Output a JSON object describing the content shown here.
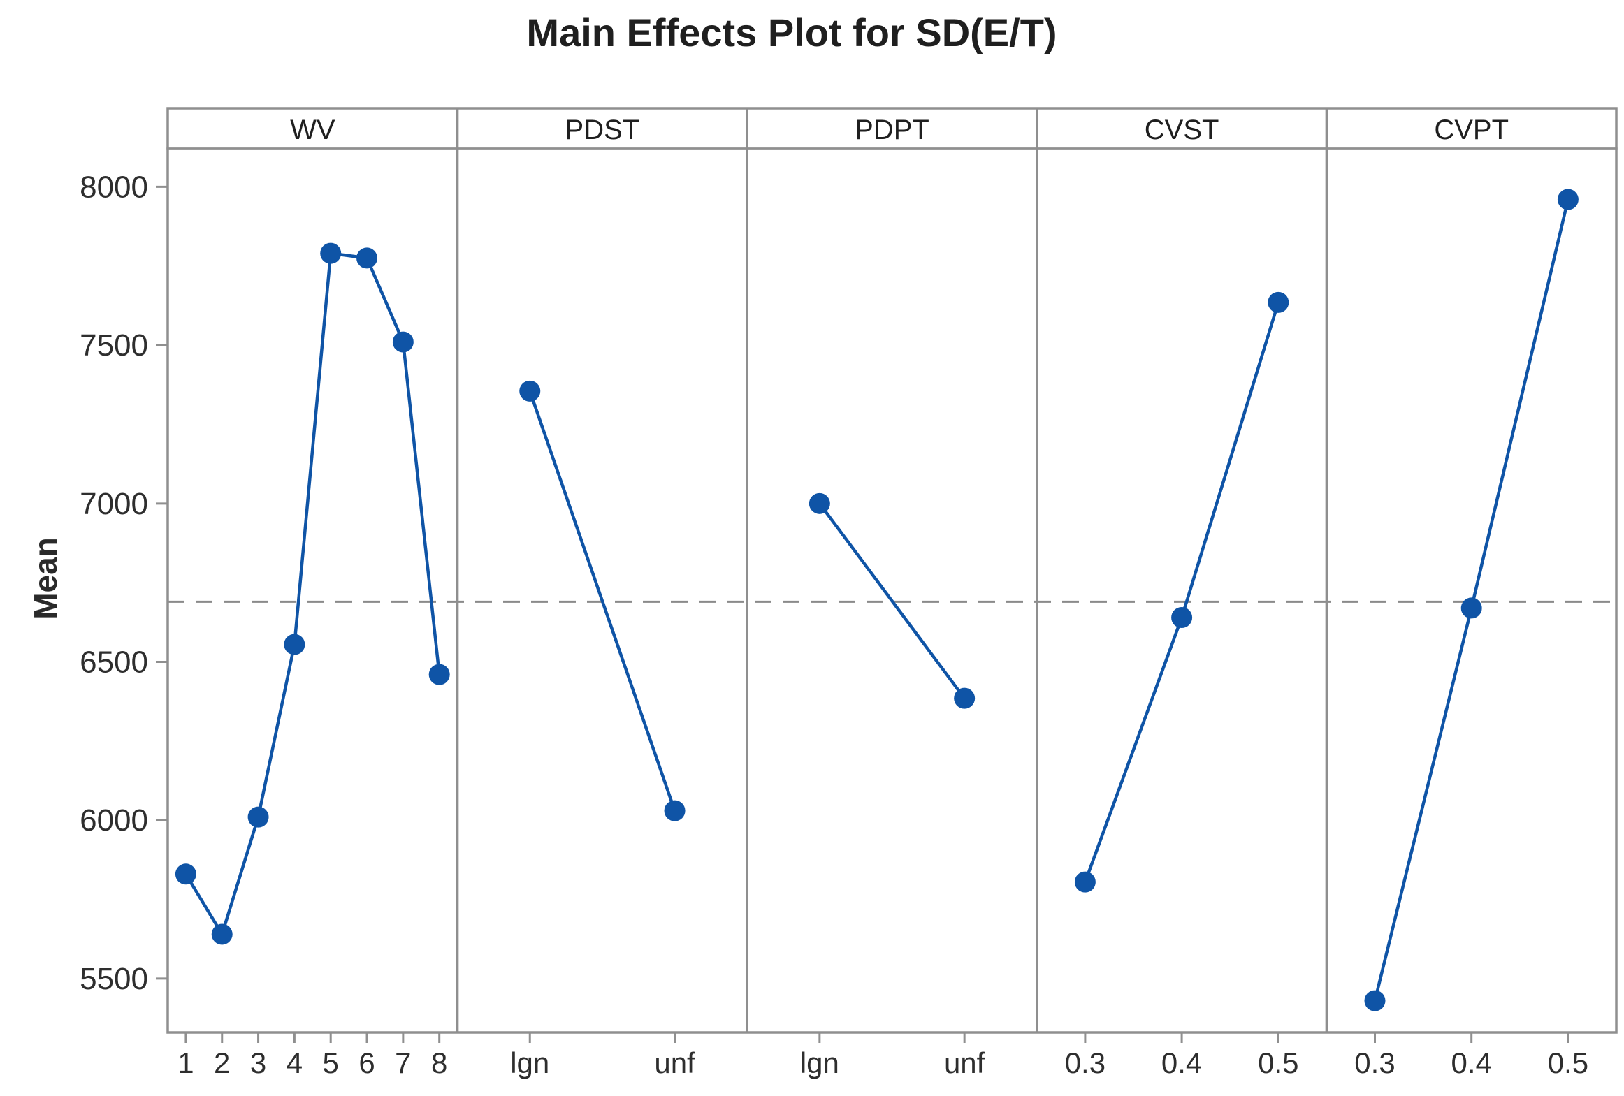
{
  "chart_data": {
    "type": "line",
    "title": "Main Effects Plot for SD(E/T)",
    "ylabel": "Mean",
    "ylim": [
      5330,
      8120
    ],
    "yticks": [
      5500,
      6000,
      6500,
      7000,
      7500,
      8000
    ],
    "grand_mean": 6690,
    "legend": "none",
    "grid": "off",
    "panels": [
      {
        "factor": "WV",
        "categories": [
          "1",
          "2",
          "3",
          "4",
          "5",
          "6",
          "7",
          "8"
        ],
        "values": [
          5830,
          5640,
          6010,
          6555,
          7790,
          7775,
          7510,
          6460
        ]
      },
      {
        "factor": "PDST",
        "categories": [
          "lgn",
          "unf"
        ],
        "values": [
          7355,
          6030
        ]
      },
      {
        "factor": "PDPT",
        "categories": [
          "lgn",
          "unf"
        ],
        "values": [
          7000,
          6385
        ]
      },
      {
        "factor": "CVST",
        "categories": [
          "0.3",
          "0.4",
          "0.5"
        ],
        "values": [
          5805,
          6640,
          7635
        ]
      },
      {
        "factor": "CVPT",
        "categories": [
          "0.3",
          "0.4",
          "0.5"
        ],
        "values": [
          5430,
          6670,
          7960
        ]
      }
    ],
    "colors": {
      "series_blue": "#0f54a6",
      "axis_gray": "#8f8f8f",
      "dash_gray": "#8a8a8a",
      "tick_text": "#2e2e2e",
      "header_text": "#1f1f1f"
    }
  }
}
